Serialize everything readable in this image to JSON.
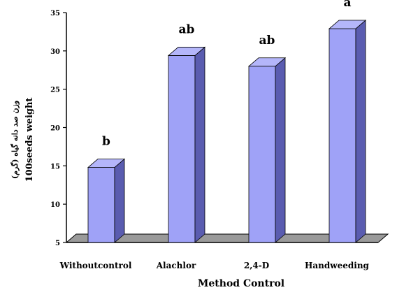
{
  "chart_data": {
    "type": "bar",
    "categories": [
      "Withoutcontrol",
      "Alachlor",
      "2,4-D",
      "Handweeding"
    ],
    "values": [
      14.8,
      29.4,
      28.0,
      32.9
    ],
    "letters": [
      "b",
      "ab",
      "ab",
      "a"
    ],
    "title": "",
    "xlabel": "Method Control",
    "ylabel": "100seeds weight",
    "ylabel_fa": "(وزن صد دانه گیاه (گرم",
    "ylim": [
      5,
      35
    ],
    "yticks": [
      "5",
      "10",
      "15",
      "20",
      "25",
      "30",
      "35"
    ],
    "grid": false,
    "legend": "none",
    "colors": {
      "bar_front": "#9fa2f7",
      "bar_side": "#5a5cb0",
      "bar_top": "#b4b6fa",
      "floor": "#9a9a9a",
      "text": "#000000"
    }
  }
}
